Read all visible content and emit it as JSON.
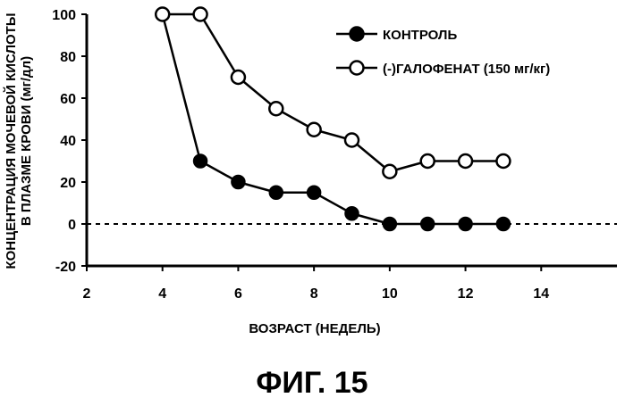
{
  "figure_label": "ФИГ. 15",
  "chart_data": {
    "type": "line",
    "xlabel": "ВОЗРАСТ (НЕДЕЛЬ)",
    "ylabel_line1": "КОНЦЕНТРАЦИЯ МОЧЕВОЙ КИСЛОТЫ",
    "ylabel_line2": "В ПЛАЗМЕ КРОВИ (мг/дл)",
    "xlim": [
      2,
      16
    ],
    "ylim": [
      -20,
      100
    ],
    "xticks": [
      "2",
      "4",
      "6",
      "8",
      "10",
      "12",
      "14"
    ],
    "yticks": [
      "-20",
      "0",
      "20",
      "40",
      "60",
      "80",
      "100"
    ],
    "reference_line": {
      "y": 0,
      "style": "dashed"
    },
    "legend_position": "top-right",
    "series": [
      {
        "name": "КОНТРОЛЬ",
        "marker": "filled-circle",
        "x": [
          4,
          5,
          6,
          7,
          8,
          9,
          10,
          11,
          12,
          13
        ],
        "y": [
          100,
          30,
          20,
          15,
          15,
          5,
          0,
          0,
          0,
          0
        ]
      },
      {
        "name": "(-)ГАЛОФЕНАТ (150 мг/кг)",
        "marker": "open-circle",
        "x": [
          4,
          5,
          6,
          7,
          8,
          9,
          10,
          11,
          12,
          13
        ],
        "y": [
          100,
          100,
          70,
          55,
          45,
          40,
          25,
          30,
          30,
          30
        ]
      }
    ]
  }
}
